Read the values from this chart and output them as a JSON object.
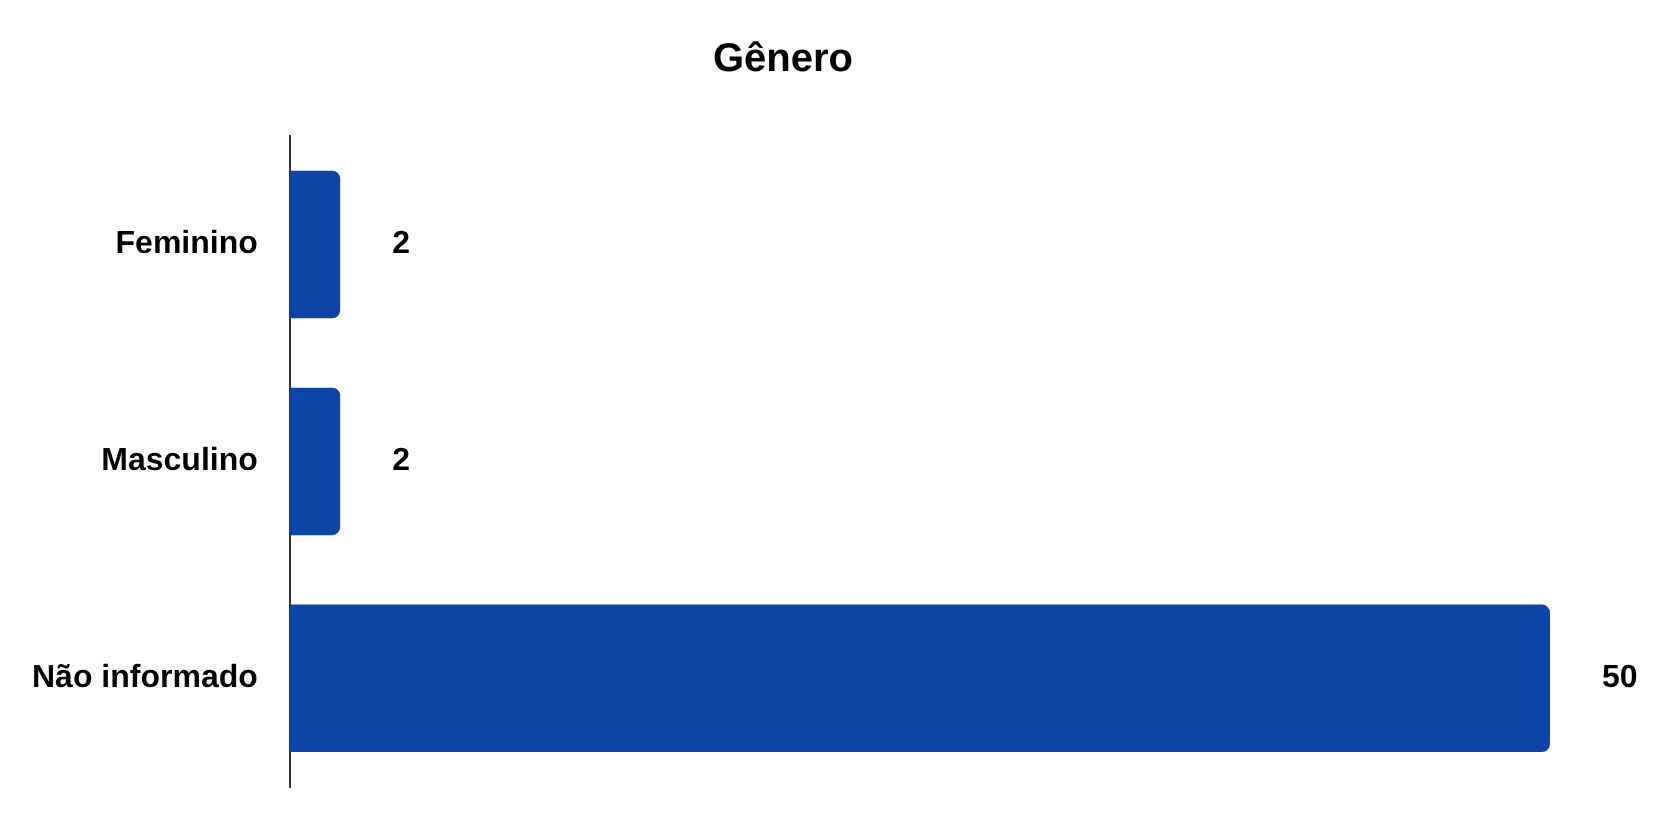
{
  "chart_data": {
    "type": "bar",
    "orientation": "horizontal",
    "title": "Gênero",
    "categories": [
      "Feminino",
      "Masculino",
      "Não informado"
    ],
    "values": [
      2,
      2,
      50
    ],
    "color": "#0e44a8",
    "data_labels": true,
    "legend": false
  }
}
